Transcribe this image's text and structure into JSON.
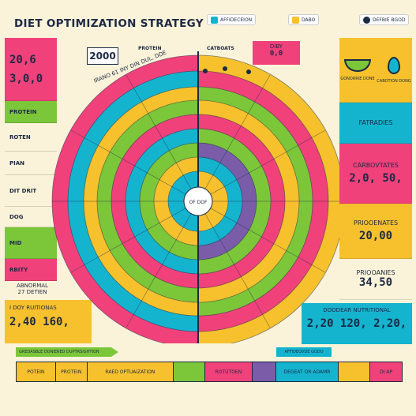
{
  "header": {
    "title": "DIET OPTIMIZATION STRATEGY",
    "legend_a": "AFFIDECEION",
    "legend_b": "DABO",
    "legend_c": "DEFBIE BGOD"
  },
  "colors": {
    "pink": "#f0417b",
    "yellow": "#f6c12c",
    "cyan": "#14b4cf",
    "green": "#7cc63a",
    "navy": "#1d2a44",
    "purple": "#7a5ca8",
    "cream": "#fbf3d9"
  },
  "left": {
    "val_a": "20,6",
    "val_b": "3,0,0",
    "badge": "2000",
    "protein": "PROTEIN",
    "rotein": "ROTEN",
    "plan": "PIAN",
    "dit": "DIT DRIT",
    "dog": "DOG",
    "mid": "MID",
    "rbity": "RBITY",
    "abnormal": "ABNORMAL",
    "abnormal_sub": "27 DETIEN",
    "bottom_label": "I DOY RUITIONAS",
    "bottom_vals": "2,40 160,"
  },
  "center": {
    "proteins": "PROTEIN",
    "carbs": "CATBOATS",
    "diby": "DIBY",
    "diby_val": "0,0",
    "ring_text": "IRANO 61 INY DIN DUL, DDE",
    "core": "OF DOF"
  },
  "right": {
    "icon_a": "GONORRIE DONE",
    "icon_b": "CABOTION DONG",
    "fat": "FATRADIES",
    "carbo": "CARBOVTATES",
    "carbo_val": "2,0, 50,",
    "pro": "PRIOOENATES",
    "pro_val": "20,00",
    "prio": "PRIOOANIES",
    "prio_val": "34,50",
    "bottom_label": "DOODEAR NUTRITIONAL",
    "bottom_vals": "2,20 120, 2,20,"
  },
  "arrows": {
    "left": "GREDASBLE DONIERED DUPTRSIGHTION",
    "right": "AFFIDEOVDE GODO"
  },
  "bottom": {
    "cells": [
      "POTEIN",
      "PROTEIN",
      "RAED OPTUAIZATION",
      "",
      "ROTUTOEN",
      "",
      "DEGEAT OR ADAMR",
      "",
      "DI AP"
    ]
  }
}
